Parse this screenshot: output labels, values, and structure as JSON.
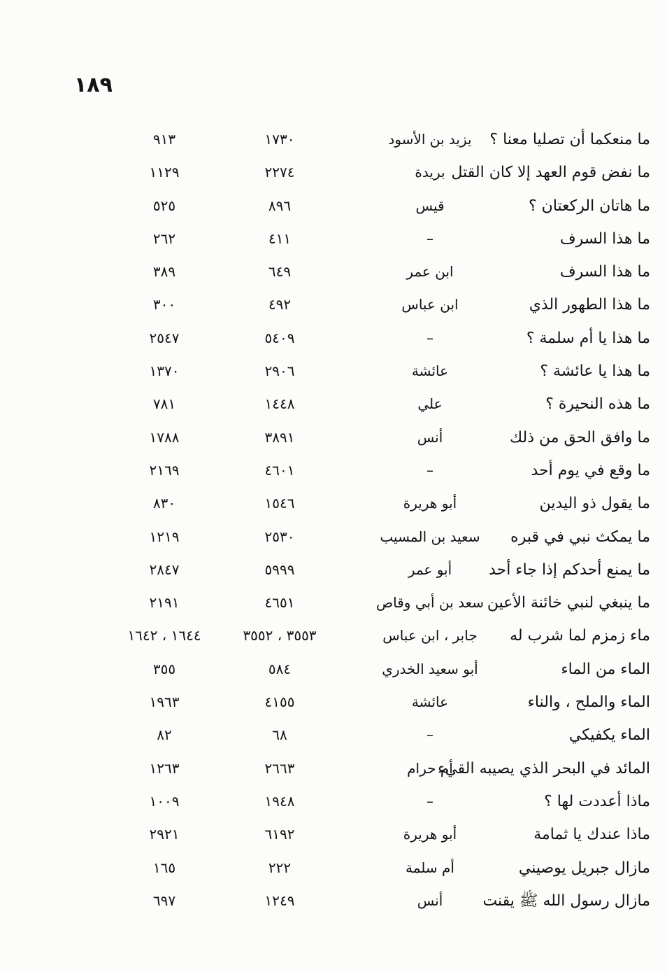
{
  "page": {
    "number": "١٨٩"
  },
  "index_table": {
    "rows": [
      {
        "text": "ما منعكما أن تصليا معنا ؟",
        "narrator": "يزيد بن الأسود",
        "hadith_no": "١٧٣٠",
        "page_no": "٩١٣"
      },
      {
        "text": "ما نفض قوم العهد إلا كان القتل",
        "narrator": "بريدة",
        "hadith_no": "٢٢٧٤",
        "page_no": "١١٢٩"
      },
      {
        "text": "ما هاتان الركعتان ؟",
        "narrator": "قيس",
        "hadith_no": "٨٩٦",
        "page_no": "٥٢٥"
      },
      {
        "text": "ما هذا السرف",
        "narrator": "–",
        "hadith_no": "٤١١",
        "page_no": "٢٦٢"
      },
      {
        "text": "ما هذا السرف",
        "narrator": "ابن عمر",
        "hadith_no": "٦٤٩",
        "page_no": "٣٨٩"
      },
      {
        "text": "ما هذا الطهور الذي",
        "narrator": "ابن عباس",
        "hadith_no": "٤٩٢",
        "page_no": "٣٠٠"
      },
      {
        "text": "ما هذا يا أم سلمة ؟",
        "narrator": "–",
        "hadith_no": "٥٤٠٩",
        "page_no": "٢٥٤٧"
      },
      {
        "text": "ما هذا يا عائشة ؟",
        "narrator": "عائشة",
        "hadith_no": "٢٩٠٦",
        "page_no": "١٣٧٠"
      },
      {
        "text": "ما هذه النحيرة ؟",
        "narrator": "علي",
        "hadith_no": "١٤٤٨",
        "page_no": "٧٨١"
      },
      {
        "text": "ما وافق الحق من ذلك",
        "narrator": "أنس",
        "hadith_no": "٣٨٩١",
        "page_no": "١٧٨٨"
      },
      {
        "text": "ما وقع في يوم أحد",
        "narrator": "–",
        "hadith_no": "٤٦٠١",
        "page_no": "٢١٦٩"
      },
      {
        "text": "ما يقول ذو اليدين",
        "narrator": "أبو هريرة",
        "hadith_no": "١٥٤٦",
        "page_no": "٨٣٠"
      },
      {
        "text": "ما يمكث نبي في قبره",
        "narrator": "سعيد بن المسيب",
        "hadith_no": "٢٥٣٠",
        "page_no": "١٢١٩"
      },
      {
        "text": "ما يمنع أحدكم إذا جاء أحد",
        "narrator": "أبو عمر",
        "hadith_no": "٥٩٩٩",
        "page_no": "٢٨٤٧"
      },
      {
        "text": "ما ينبغي لنبي خائنة الأعين",
        "narrator": "سعد بن أبي وقاص",
        "hadith_no": "٤٦٥١",
        "page_no": "٢١٩١"
      },
      {
        "text": "ماء زمزم لما شرب له",
        "narrator": "جابر ، ابن عباس",
        "hadith_no": "٣٥٥٣ ، ٣٥٥٢",
        "page_no": "١٦٤٤ ، ١٦٤٢"
      },
      {
        "text": "الماء من الماء",
        "narrator": "أبو سعيد الخدري",
        "hadith_no": "٥٨٤",
        "page_no": "٣٥٥"
      },
      {
        "text": "الماء والملح ، والناء",
        "narrator": "عائشة",
        "hadith_no": "٤١٥٥",
        "page_no": "١٩٦٣"
      },
      {
        "text": "الماء يكفيكي",
        "narrator": "–",
        "hadith_no": "٦٨",
        "page_no": "٨٢"
      },
      {
        "text": "المائد في البحر الذي يصيبه القيء",
        "narrator": "أم حرام",
        "hadith_no": "٢٦٦٣",
        "page_no": "١٢٦٣"
      },
      {
        "text": "ماذا أعددت لها ؟",
        "narrator": "–",
        "hadith_no": "١٩٤٨",
        "page_no": "١٠٠٩"
      },
      {
        "text": "ماذا عندك يا ثمامة",
        "narrator": "أبو هريرة",
        "hadith_no": "٦١٩٢",
        "page_no": "٢٩٢١"
      },
      {
        "text": "مازال جبريل يوصيني",
        "narrator": "أم سلمة",
        "hadith_no": "٢٢٢",
        "page_no": "١٦٥"
      },
      {
        "text": "مازال رسول الله ﷺ يقنت",
        "narrator": "أنس",
        "hadith_no": "١٢٤٩",
        "page_no": "٦٩٧"
      }
    ]
  }
}
